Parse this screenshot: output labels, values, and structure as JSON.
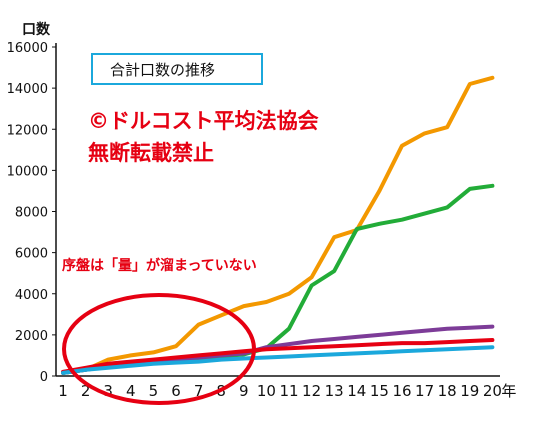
{
  "chart_data": {
    "type": "line",
    "title": "合計口数の推移",
    "ylabel": "口数",
    "xlabel_unit": "年",
    "ylim": [
      0,
      16000
    ],
    "yticks": [
      0,
      2000,
      4000,
      6000,
      8000,
      10000,
      12000,
      14000,
      16000
    ],
    "x": [
      1,
      2,
      3,
      4,
      5,
      6,
      7,
      8,
      9,
      10,
      11,
      12,
      13,
      14,
      15,
      16,
      17,
      18,
      19,
      20
    ],
    "series": [
      {
        "color": "#f39800",
        "values": [
          150,
          300,
          800,
          1000,
          1150,
          1450,
          2500,
          2950,
          3400,
          3600,
          4000,
          4800,
          6750,
          7100,
          9000,
          11200,
          11800,
          12100,
          14200,
          14500
        ]
      },
      {
        "color": "#22ac38",
        "values": [
          150,
          300,
          500,
          600,
          700,
          800,
          850,
          950,
          1050,
          1350,
          2300,
          4400,
          5100,
          7150,
          7400,
          7600,
          7900,
          8200,
          9100,
          9250
        ]
      },
      {
        "color": "#7d3c98",
        "values": [
          150,
          300,
          450,
          600,
          700,
          800,
          900,
          1000,
          1100,
          1400,
          1550,
          1700,
          1800,
          1900,
          2000,
          2100,
          2200,
          2300,
          2350,
          2400
        ]
      },
      {
        "color": "#e60012",
        "values": [
          200,
          400,
          600,
          700,
          800,
          900,
          1000,
          1100,
          1200,
          1300,
          1350,
          1400,
          1450,
          1500,
          1550,
          1600,
          1600,
          1650,
          1700,
          1750
        ]
      },
      {
        "color": "#1ba8dc",
        "values": [
          150,
          300,
          400,
          500,
          600,
          650,
          700,
          800,
          850,
          900,
          950,
          1000,
          1050,
          1100,
          1150,
          1200,
          1250,
          1300,
          1350,
          1400
        ]
      }
    ],
    "annotations": {
      "watermark_line1": "©ドルコスト平均法協会",
      "watermark_line2": "無断転載禁止",
      "note": "序盤は「量」が溜まっていない"
    }
  }
}
